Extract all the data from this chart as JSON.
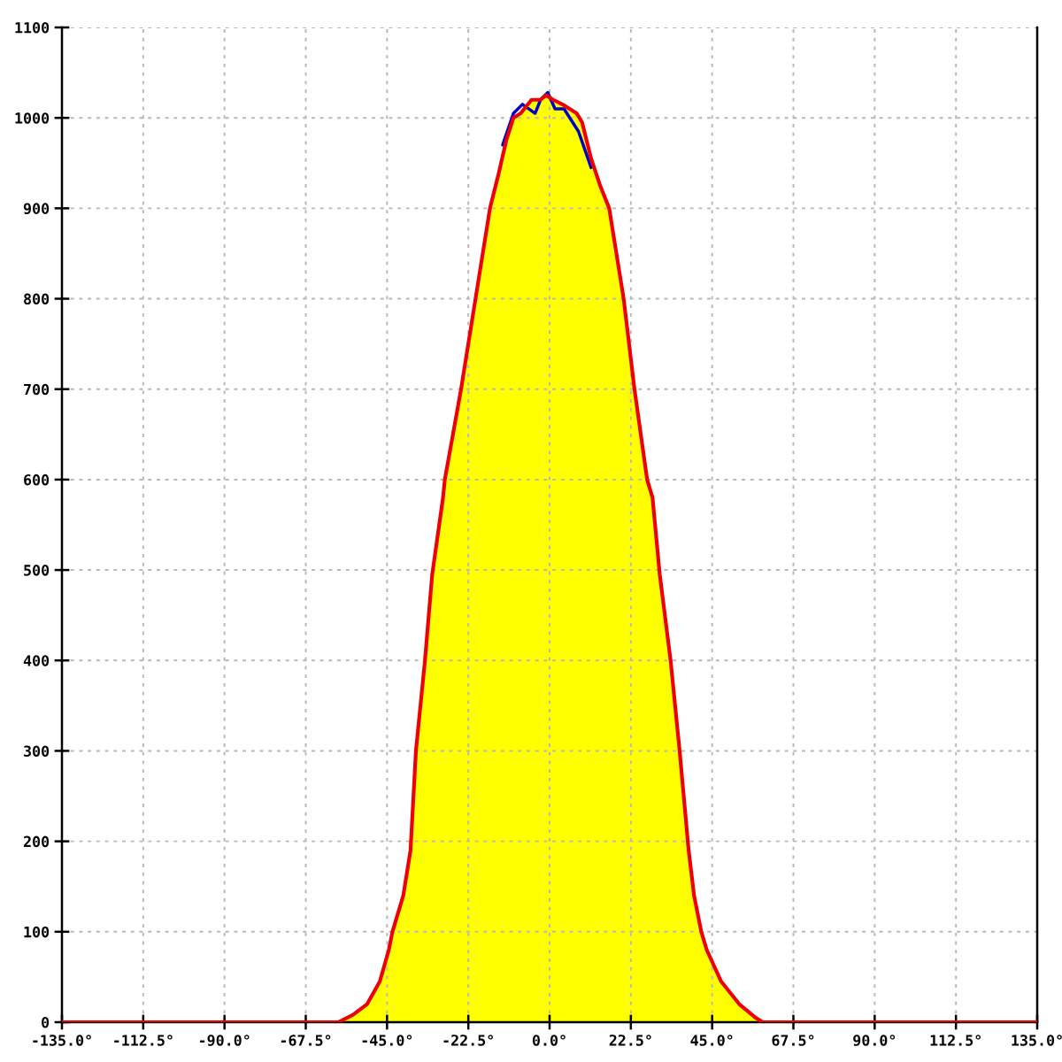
{
  "chart_data": {
    "type": "line",
    "xlim": [
      -135,
      135
    ],
    "ylim": [
      0,
      1100
    ],
    "xticks": [
      {
        "value": -135,
        "label": "-135.0°"
      },
      {
        "value": -112.5,
        "label": "-112.5°"
      },
      {
        "value": -90,
        "label": "-90.0°"
      },
      {
        "value": -67.5,
        "label": "-67.5°"
      },
      {
        "value": -45,
        "label": "-45.0°"
      },
      {
        "value": -22.5,
        "label": "-22.5°"
      },
      {
        "value": 0,
        "label": "0.0°"
      },
      {
        "value": 22.5,
        "label": "22.5°"
      },
      {
        "value": 45,
        "label": "45.0°"
      },
      {
        "value": 67.5,
        "label": "67.5°"
      },
      {
        "value": 90,
        "label": "90.0°"
      },
      {
        "value": 112.5,
        "label": "112.5°"
      },
      {
        "value": 135,
        "label": "135.0°"
      }
    ],
    "yticks": [
      0,
      100,
      200,
      300,
      400,
      500,
      600,
      700,
      800,
      900,
      1000,
      1100
    ],
    "grid": true,
    "series": [
      {
        "type": "area",
        "color": "#ffff00",
        "x": [
          -58.5,
          -54.5,
          -50.5,
          -47,
          -44.5,
          -43.5,
          -40.5,
          -38.5,
          -37,
          -34.5,
          -32.5,
          -29.5,
          -29,
          -24.5,
          -20.5,
          -16.5,
          -14,
          -12,
          -10,
          -8,
          -5,
          -2.5,
          -1,
          1,
          3.5,
          7.5,
          9,
          11.5,
          14,
          16.5,
          20.5,
          23.5,
          27,
          28.5,
          30.5,
          33.5,
          36,
          38.5,
          40,
          42,
          43.5,
          47.5,
          52.5,
          57,
          59
        ],
        "values": [
          0,
          8,
          20,
          45,
          80,
          100,
          140,
          190,
          300,
          400,
          495,
          580,
          600,
          700,
          800,
          900,
          940,
          975,
          1000,
          1005,
          1020,
          1020,
          1025,
          1020,
          1015,
          1005,
          995,
          955,
          925,
          900,
          800,
          700,
          600,
          580,
          495,
          400,
          300,
          190,
          140,
          100,
          80,
          45,
          20,
          5,
          0
        ]
      },
      {
        "color": "#0000cc",
        "x": [
          -13,
          -10,
          -7.5,
          -4,
          -2.5,
          -0.5,
          1.5,
          4,
          8,
          11.5
        ],
        "values": [
          970,
          1005,
          1015,
          1005,
          1020,
          1028,
          1010,
          1010,
          985,
          945
        ]
      },
      {
        "color": "#ee0000",
        "x": [
          -135,
          -58.5,
          -54.5,
          -50.5,
          -47,
          -44.5,
          -43.5,
          -40.5,
          -38.5,
          -37,
          -34.5,
          -32.5,
          -29.5,
          -29,
          -24.5,
          -20.5,
          -16.5,
          -14,
          -12,
          -10,
          -8,
          -5,
          -2.5,
          -1,
          1,
          3.5,
          7.5,
          9,
          11.5,
          14,
          16.5,
          20.5,
          23.5,
          27,
          28.5,
          30.5,
          33.5,
          36,
          38.5,
          40,
          42,
          43.5,
          47.5,
          52.5,
          57,
          59,
          135
        ],
        "values": [
          0,
          0,
          8,
          20,
          45,
          80,
          100,
          140,
          190,
          300,
          400,
          495,
          580,
          600,
          700,
          800,
          900,
          940,
          975,
          1000,
          1005,
          1020,
          1020,
          1025,
          1020,
          1015,
          1005,
          995,
          955,
          925,
          900,
          800,
          700,
          600,
          580,
          495,
          400,
          300,
          190,
          140,
          100,
          80,
          45,
          20,
          5,
          0,
          0
        ]
      }
    ]
  }
}
